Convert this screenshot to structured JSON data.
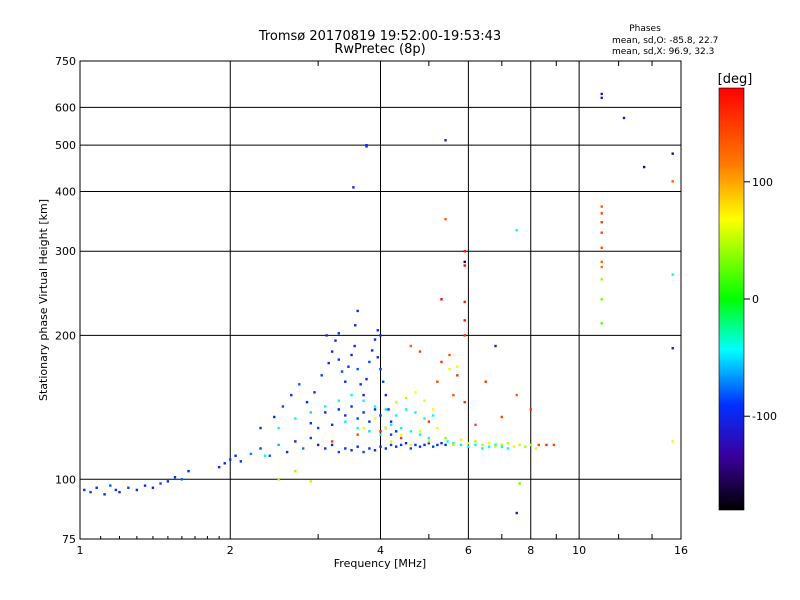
{
  "chart_data": {
    "type": "scatter",
    "title": "Tromsø 20170819 19:52:00-19:53:43",
    "subtitle": "RwPretec (8p)",
    "xlabel": "Frequency [MHz]",
    "ylabel": "Stationary phase Virtual Height [km]",
    "x_scale": "log",
    "y_scale": "log",
    "xlim": [
      1,
      16
    ],
    "ylim": [
      75,
      750
    ],
    "x_ticks": [
      {
        "v": 1,
        "label": "1"
      },
      {
        "v": 2,
        "label": "2"
      },
      {
        "v": 4,
        "label": "4"
      },
      {
        "v": 6,
        "label": "6"
      },
      {
        "v": 8,
        "label": "8"
      },
      {
        "v": 10,
        "label": "10"
      },
      {
        "v": 16,
        "label": "16"
      }
    ],
    "y_ticks": [
      {
        "v": 75,
        "label": "75"
      },
      {
        "v": 100,
        "label": "100"
      },
      {
        "v": 200,
        "label": "200"
      },
      {
        "v": 300,
        "label": "300"
      },
      {
        "v": 400,
        "label": "400"
      },
      {
        "v": 500,
        "label": "500"
      },
      {
        "v": 600,
        "label": "600"
      },
      {
        "v": 750,
        "label": "750"
      }
    ],
    "grid": true,
    "phase_stats": {
      "header": "Phases",
      "line_o": "mean, sd,O: -85.8, 22.7",
      "line_x": "mean, sd,X:  96.9, 32.3"
    },
    "colorbar": {
      "label": "[deg]",
      "range": [
        -180,
        180
      ],
      "ticks": [
        {
          "v": 100,
          "label": "100"
        },
        {
          "v": 0,
          "label": "0"
        },
        {
          "v": -100,
          "label": "-100"
        }
      ]
    },
    "series": [
      {
        "points": [
          [
            1.02,
            95,
            -90
          ],
          [
            1.05,
            94,
            -85
          ],
          [
            1.08,
            96,
            -95
          ],
          [
            1.12,
            93,
            -100
          ],
          [
            1.15,
            97,
            -80
          ],
          [
            1.18,
            95,
            -90
          ],
          [
            1.2,
            94,
            -100
          ],
          [
            1.25,
            96,
            -85
          ],
          [
            1.3,
            95,
            -95
          ],
          [
            1.35,
            97,
            -90
          ],
          [
            1.4,
            96,
            -100
          ],
          [
            1.45,
            98,
            -85
          ],
          [
            1.5,
            99,
            -95
          ],
          [
            1.55,
            101,
            -90
          ],
          [
            1.6,
            100,
            -80
          ],
          [
            1.65,
            104,
            -95
          ],
          [
            1.9,
            106,
            -90
          ],
          [
            1.95,
            108,
            -100
          ],
          [
            2.0,
            110,
            -85
          ],
          [
            2.05,
            112,
            -95
          ],
          [
            2.1,
            109,
            -90
          ],
          [
            2.2,
            113,
            -70
          ],
          [
            2.3,
            116,
            -85
          ],
          [
            2.4,
            112,
            -80
          ],
          [
            2.5,
            118,
            -60
          ],
          [
            2.6,
            114,
            -90
          ],
          [
            2.7,
            120,
            -95
          ],
          [
            2.8,
            116,
            -75
          ],
          [
            2.9,
            122,
            -85
          ],
          [
            3.0,
            118,
            -100
          ],
          [
            3.1,
            116,
            -90
          ],
          [
            3.2,
            118,
            -95
          ],
          [
            3.3,
            114,
            -85
          ],
          [
            3.4,
            116,
            -90
          ],
          [
            3.5,
            115,
            -100
          ],
          [
            3.6,
            117,
            -95
          ],
          [
            3.7,
            114,
            -85
          ],
          [
            3.8,
            116,
            -90
          ],
          [
            3.9,
            115,
            -100
          ],
          [
            4.0,
            117,
            -95
          ],
          [
            4.1,
            116,
            -90
          ],
          [
            4.2,
            118,
            -85
          ],
          [
            4.3,
            117,
            -95
          ],
          [
            4.4,
            118,
            -90
          ],
          [
            4.5,
            119,
            -100
          ],
          [
            4.6,
            116,
            -85
          ],
          [
            4.7,
            118,
            -95
          ],
          [
            4.8,
            117,
            -90
          ],
          [
            4.9,
            118,
            -100
          ],
          [
            5.0,
            119,
            -95
          ],
          [
            5.1,
            117,
            -85
          ],
          [
            5.2,
            118,
            -90
          ],
          [
            5.3,
            119,
            -95
          ],
          [
            5.4,
            118,
            -100
          ],
          [
            2.3,
            128,
            -90
          ],
          [
            2.45,
            135,
            -95
          ],
          [
            2.55,
            142,
            -85
          ],
          [
            2.65,
            150,
            -90
          ],
          [
            2.75,
            158,
            -80
          ],
          [
            2.85,
            145,
            -95
          ],
          [
            2.95,
            152,
            -90
          ],
          [
            3.05,
            165,
            -85
          ],
          [
            3.15,
            175,
            -90
          ],
          [
            3.2,
            185,
            -100
          ],
          [
            3.25,
            195,
            -95
          ],
          [
            3.3,
            178,
            -90
          ],
          [
            3.35,
            168,
            -85
          ],
          [
            3.4,
            160,
            -95
          ],
          [
            3.45,
            172,
            -90
          ],
          [
            3.5,
            182,
            -100
          ],
          [
            3.55,
            190,
            -95
          ],
          [
            3.6,
            170,
            -80
          ],
          [
            3.65,
            158,
            -90
          ],
          [
            3.7,
            150,
            -100
          ],
          [
            3.75,
            162,
            -95
          ],
          [
            3.8,
            176,
            -85
          ],
          [
            3.85,
            186,
            -90
          ],
          [
            3.9,
            196,
            -95
          ],
          [
            3.95,
            180,
            -100
          ],
          [
            4.0,
            170,
            -90
          ],
          [
            4.05,
            160,
            -85
          ],
          [
            4.1,
            150,
            -95
          ],
          [
            4.15,
            140,
            -90
          ],
          [
            4.2,
            132,
            -100
          ],
          [
            4.3,
            126,
            -95
          ],
          [
            2.9,
            131,
            -90
          ],
          [
            3.0,
            128,
            -85
          ],
          [
            3.1,
            138,
            -95
          ],
          [
            3.2,
            130,
            -90
          ],
          [
            3.3,
            140,
            -100
          ],
          [
            3.4,
            136,
            -95
          ],
          [
            3.5,
            142,
            -90
          ],
          [
            3.6,
            134,
            -85
          ],
          [
            3.7,
            138,
            -95
          ],
          [
            3.8,
            132,
            -90
          ],
          [
            3.9,
            140,
            -100
          ],
          [
            4.0,
            136,
            -95
          ],
          [
            4.1,
            128,
            -90
          ],
          [
            4.2,
            124,
            -85
          ],
          [
            3.12,
            200,
            -95
          ],
          [
            3.3,
            202,
            -90
          ],
          [
            3.56,
            210,
            -100
          ],
          [
            3.6,
            225,
            -90
          ],
          [
            3.95,
            205,
            -90
          ],
          [
            4.0,
            200,
            -95
          ],
          [
            3.53,
            408,
            -100
          ],
          [
            3.75,
            500,
            -100
          ],
          [
            3.75,
            497,
            -95
          ],
          [
            5.4,
            512,
            -110
          ],
          [
            5.9,
            285,
            -150
          ],
          [
            6.8,
            190,
            -110
          ],
          [
            7.5,
            85,
            -110
          ],
          [
            11.1,
            640,
            -110
          ],
          [
            11.1,
            628,
            -105
          ],
          [
            12.3,
            570,
            -110
          ],
          [
            13.5,
            450,
            -140
          ],
          [
            15.4,
            480,
            -140
          ],
          [
            15.4,
            268,
            -40
          ],
          [
            15.4,
            188,
            -110
          ]
        ]
      },
      {
        "points": [
          [
            2.35,
            112,
            -40
          ],
          [
            2.5,
            128,
            -45
          ],
          [
            2.7,
            134,
            -40
          ],
          [
            2.9,
            138,
            -50
          ],
          [
            3.1,
            142,
            -45
          ],
          [
            3.3,
            146,
            -35
          ],
          [
            3.5,
            150,
            -40
          ],
          [
            3.7,
            146,
            -45
          ],
          [
            3.9,
            142,
            -40
          ],
          [
            4.1,
            140,
            -50
          ],
          [
            4.3,
            136,
            -45
          ],
          [
            4.5,
            140,
            -40
          ],
          [
            4.7,
            138,
            -45
          ],
          [
            4.9,
            134,
            -35
          ],
          [
            5.1,
            136,
            -40
          ],
          [
            3.4,
            132,
            -45
          ],
          [
            3.6,
            128,
            -40
          ],
          [
            3.8,
            126,
            -50
          ],
          [
            4.0,
            124,
            -45
          ],
          [
            4.2,
            130,
            -35
          ],
          [
            4.4,
            128,
            -40
          ],
          [
            4.6,
            126,
            -45
          ],
          [
            4.8,
            124,
            -40
          ],
          [
            5.0,
            122,
            -45
          ],
          [
            7.5,
            332,
            -40
          ],
          [
            5.45,
            120,
            -35
          ],
          [
            5.6,
            119,
            -40
          ],
          [
            5.8,
            118,
            -30
          ],
          [
            6.0,
            117,
            -45
          ],
          [
            6.2,
            118,
            -40
          ],
          [
            6.4,
            116,
            -35
          ],
          [
            6.6,
            117,
            -40
          ],
          [
            6.8,
            118,
            -30
          ],
          [
            7.0,
            117,
            -45
          ],
          [
            7.2,
            116,
            -40
          ]
        ]
      },
      {
        "points": [
          [
            2.5,
            100,
            40
          ],
          [
            2.7,
            104,
            45
          ],
          [
            2.9,
            99,
            50
          ],
          [
            4.2,
            120,
            60
          ],
          [
            4.4,
            124,
            70
          ],
          [
            4.6,
            118,
            65
          ],
          [
            4.8,
            126,
            60
          ],
          [
            5.0,
            120,
            55
          ],
          [
            5.2,
            128,
            65
          ],
          [
            5.4,
            122,
            40
          ],
          [
            5.6,
            118,
            50
          ],
          [
            5.8,
            121,
            60
          ],
          [
            6.0,
            119,
            55
          ],
          [
            6.2,
            120,
            45
          ],
          [
            6.4,
            118,
            50
          ],
          [
            6.6,
            119,
            60
          ],
          [
            6.8,
            117,
            55
          ],
          [
            7.0,
            118,
            45
          ],
          [
            7.2,
            119,
            50
          ],
          [
            7.4,
            117,
            60
          ],
          [
            7.6,
            118,
            55
          ],
          [
            7.8,
            117,
            45
          ],
          [
            8.0,
            118,
            50
          ],
          [
            8.2,
            116,
            60
          ],
          [
            7.6,
            98,
            30
          ],
          [
            3.7,
            128,
            70
          ],
          [
            3.9,
            134,
            65
          ],
          [
            4.1,
            128,
            60
          ],
          [
            4.3,
            145,
            55
          ],
          [
            4.5,
            148,
            50
          ],
          [
            4.7,
            152,
            65
          ],
          [
            4.9,
            146,
            60
          ],
          [
            5.1,
            140,
            70
          ],
          [
            5.5,
            170,
            60
          ],
          [
            5.7,
            172,
            65
          ],
          [
            15.4,
            120,
            60
          ],
          [
            11.1,
            262,
            40
          ],
          [
            11.1,
            238,
            30
          ],
          [
            11.1,
            212,
            20
          ]
        ]
      },
      {
        "points": [
          [
            3.2,
            120,
            150
          ],
          [
            3.6,
            124,
            140
          ],
          [
            4.0,
            126,
            160
          ],
          [
            4.4,
            122,
            150
          ],
          [
            4.6,
            190,
            130
          ],
          [
            4.8,
            185,
            145
          ],
          [
            5.0,
            132,
            150
          ],
          [
            5.2,
            160,
            140
          ],
          [
            5.3,
            176,
            150
          ],
          [
            5.5,
            182,
            135
          ],
          [
            5.6,
            150,
            140
          ],
          [
            5.7,
            165,
            150
          ],
          [
            5.9,
            145,
            160
          ],
          [
            6.2,
            130,
            140
          ],
          [
            6.5,
            160,
            150
          ],
          [
            7.0,
            135,
            145
          ],
          [
            7.5,
            150,
            130
          ],
          [
            8.0,
            140,
            150
          ],
          [
            8.3,
            118,
            145
          ],
          [
            8.6,
            118,
            150
          ],
          [
            8.9,
            118,
            140
          ],
          [
            5.4,
            350,
            130
          ],
          [
            5.3,
            238,
            175
          ],
          [
            5.9,
            300,
            170
          ],
          [
            5.9,
            280,
            175
          ],
          [
            5.9,
            235,
            165
          ],
          [
            5.9,
            215,
            170
          ],
          [
            5.9,
            200,
            160
          ],
          [
            15.4,
            420,
            130
          ],
          [
            11.1,
            372,
            130
          ],
          [
            11.1,
            360,
            140
          ],
          [
            11.1,
            345,
            150
          ],
          [
            11.1,
            328,
            145
          ],
          [
            11.1,
            305,
            135
          ],
          [
            11.1,
            285,
            125
          ],
          [
            11.1,
            278,
            120
          ]
        ]
      }
    ]
  }
}
